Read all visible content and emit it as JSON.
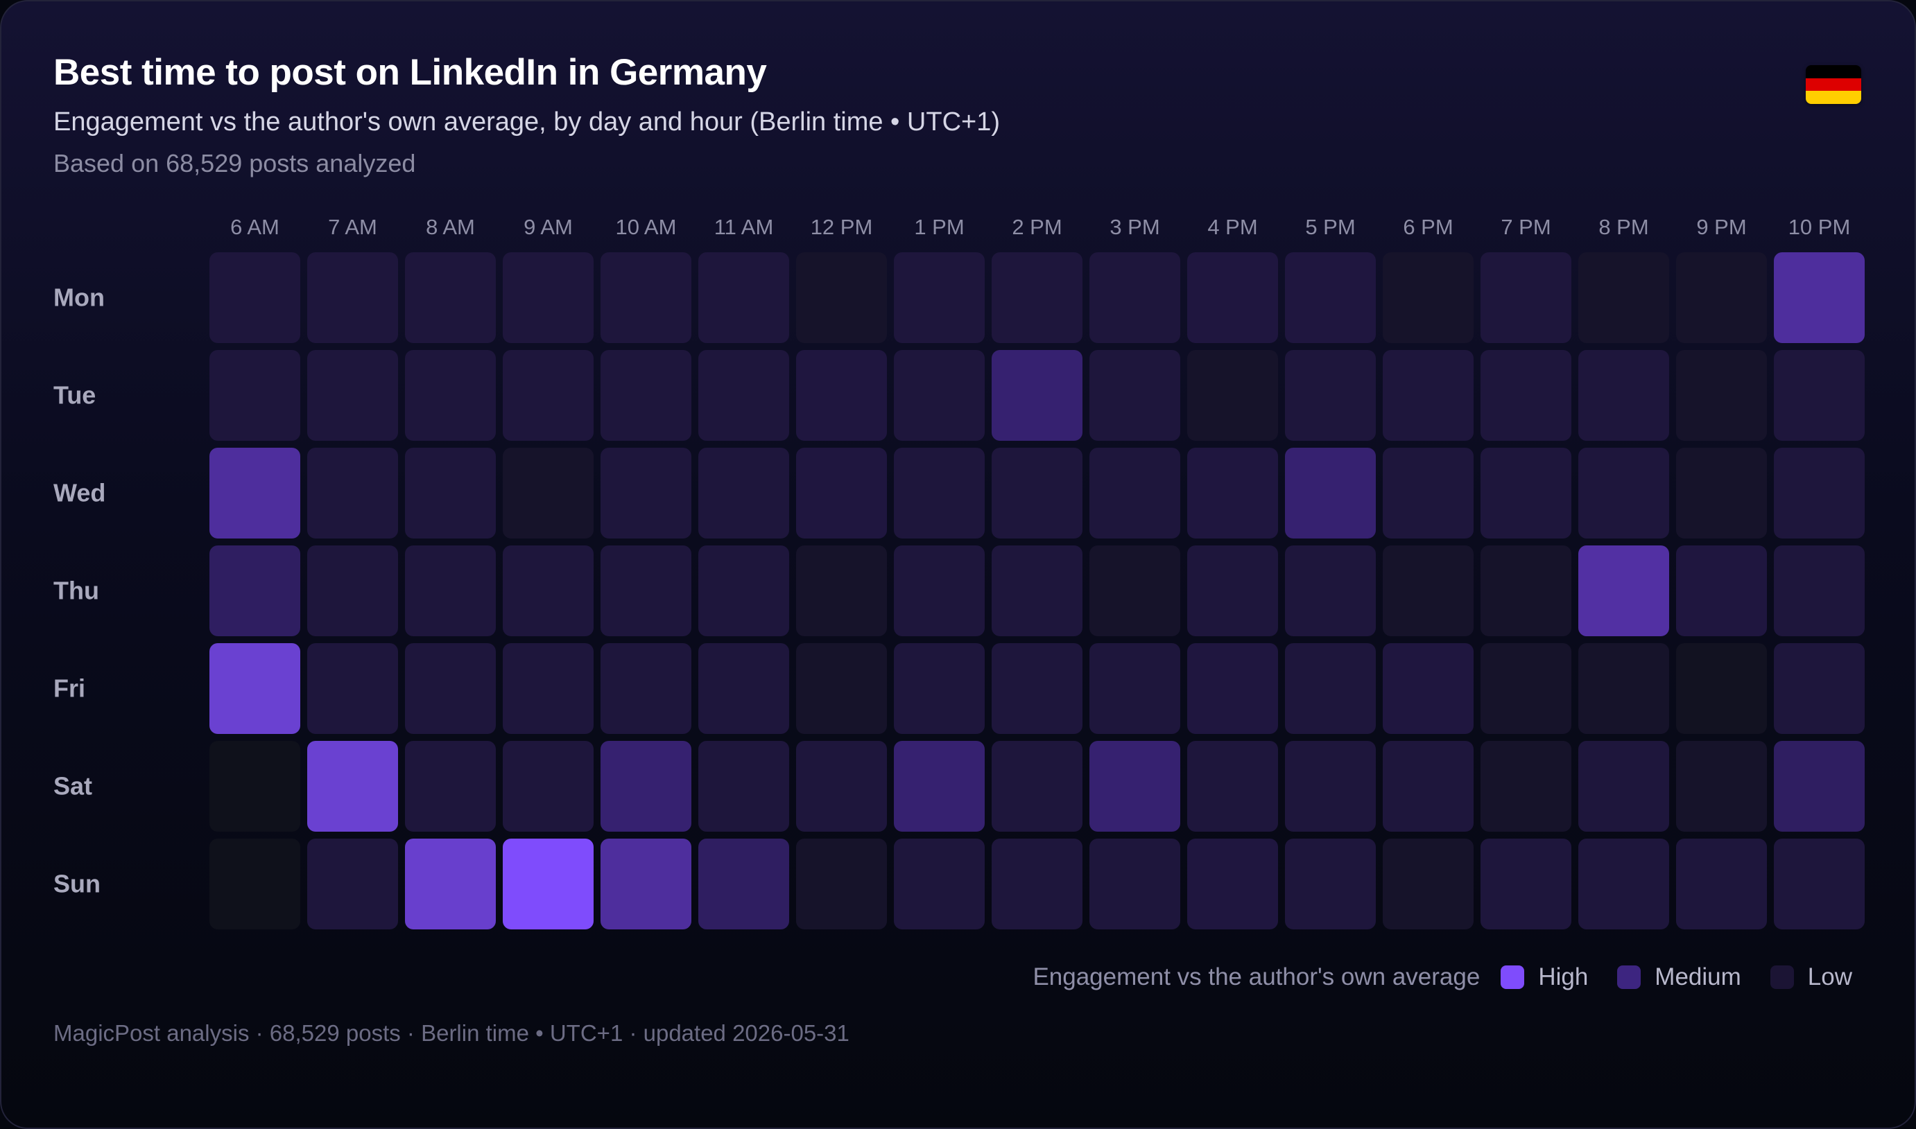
{
  "header": {
    "title": "Best time to post on LinkedIn in Germany",
    "subtitle": "Engagement vs the author's own average, by day and hour (Berlin time • UTC+1)",
    "posts_note": "Based on 68,529 posts analyzed",
    "flag_icon": "germany-flag-icon",
    "flag_colors": [
      "#000000",
      "#dd0000",
      "#ffce00"
    ]
  },
  "chart_data": {
    "type": "heatmap",
    "title": "Best time to post on LinkedIn in Germany",
    "x_labels": [
      "6 AM",
      "7 AM",
      "8 AM",
      "9 AM",
      "10 AM",
      "11 AM",
      "12 PM",
      "1 PM",
      "2 PM",
      "3 PM",
      "4 PM",
      "5 PM",
      "6 PM",
      "7 PM",
      "8 PM",
      "9 PM",
      "10 PM"
    ],
    "y_labels": [
      "Mon",
      "Tue",
      "Wed",
      "Thu",
      "Fri",
      "Sat",
      "Sun"
    ],
    "value_scale": "relative engagement level, 0 = low, 1 = high",
    "values": [
      [
        0.22,
        0.22,
        0.22,
        0.22,
        0.22,
        0.22,
        0.1,
        0.22,
        0.22,
        0.22,
        0.24,
        0.24,
        0.1,
        0.22,
        0.1,
        0.1,
        0.6
      ],
      [
        0.22,
        0.22,
        0.22,
        0.22,
        0.22,
        0.22,
        0.24,
        0.22,
        0.45,
        0.22,
        0.1,
        0.22,
        0.22,
        0.22,
        0.22,
        0.1,
        0.22
      ],
      [
        0.6,
        0.22,
        0.22,
        0.1,
        0.22,
        0.22,
        0.24,
        0.22,
        0.22,
        0.22,
        0.24,
        0.45,
        0.22,
        0.22,
        0.22,
        0.1,
        0.22
      ],
      [
        0.4,
        0.22,
        0.22,
        0.22,
        0.22,
        0.22,
        0.1,
        0.22,
        0.22,
        0.1,
        0.22,
        0.22,
        0.1,
        0.1,
        0.62,
        0.24,
        0.22
      ],
      [
        0.82,
        0.22,
        0.22,
        0.22,
        0.22,
        0.22,
        0.1,
        0.22,
        0.22,
        0.22,
        0.24,
        0.22,
        0.24,
        0.1,
        0.1,
        0.04,
        0.22
      ],
      [
        0.0,
        0.82,
        0.22,
        0.22,
        0.45,
        0.22,
        0.22,
        0.45,
        0.22,
        0.45,
        0.22,
        0.22,
        0.22,
        0.1,
        0.22,
        0.1,
        0.4
      ],
      [
        0.0,
        0.22,
        0.8,
        1.0,
        0.6,
        0.4,
        0.1,
        0.22,
        0.22,
        0.22,
        0.24,
        0.22,
        0.1,
        0.22,
        0.22,
        0.22,
        0.22
      ]
    ],
    "color_scale": [
      "#0f111b",
      "#1b1434",
      "#25194c",
      "#3d2580",
      "#5a34b0",
      "#6b42d4",
      "#7f4cfc"
    ],
    "legend": {
      "title": "Engagement vs the author's own average",
      "items": [
        {
          "label": "High",
          "color": "#7f4cfc"
        },
        {
          "label": "Medium",
          "color": "#3d2580"
        },
        {
          "label": "Low",
          "color": "#1b1434"
        }
      ]
    }
  },
  "footer": {
    "text": "MagicPost analysis · 68,529 posts · Berlin time • UTC+1 · updated 2026-05-31"
  }
}
